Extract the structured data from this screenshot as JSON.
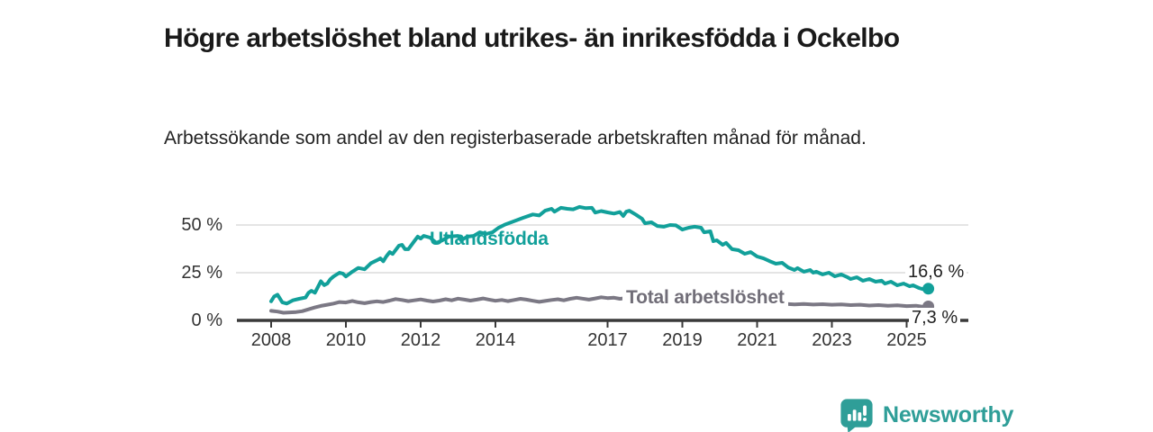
{
  "header": {
    "title": "Högre arbetslöshet bland utrikes- än inrikesfödda i Ockelbo",
    "subtitle": "Arbetssökande som andel av den registerbaserade arbetskraften månad för månad."
  },
  "footer": {
    "brand": "Newsworthy",
    "logo_icon": "bar-chart-speech-bubble-icon"
  },
  "colors": {
    "accent_teal": "#12a09a",
    "series_gray": "#7b7884",
    "brand_teal": "#2f9e98",
    "axis": "#3a3a3a",
    "gridline": "#dcdcdc",
    "title_text": "#1a1a1a"
  },
  "chart_data": {
    "type": "line",
    "title": "Högre arbetslöshet bland utrikes- än inrikesfödda i Ockelbo",
    "subtitle": "Arbetssökande som andel av den registerbaserade arbetskraften månad för månad.",
    "xlabel": "",
    "ylabel": "",
    "grid": "horizontal",
    "legend_position": "inline-labels",
    "xlim": [
      2007.1,
      2026.4
    ],
    "ylim": [
      0,
      65
    ],
    "x_ticks": [
      2008,
      2010,
      2012,
      2014,
      2017,
      2019,
      2021,
      2023,
      2025
    ],
    "y_ticks": [
      {
        "value": 0,
        "label": "0 %"
      },
      {
        "value": 25,
        "label": "25 %"
      },
      {
        "value": 50,
        "label": "50 %"
      }
    ],
    "series": [
      {
        "name": "Utlandsfödda",
        "color": "#12a09a",
        "end_label": "16,6 %",
        "end_value": 16.6,
        "points": [
          [
            2008.0,
            10.0
          ],
          [
            2008.08,
            12.5
          ],
          [
            2008.17,
            13.5
          ],
          [
            2008.3,
            9.5
          ],
          [
            2008.42,
            8.8
          ],
          [
            2008.58,
            10.5
          ],
          [
            2008.75,
            11.3
          ],
          [
            2008.92,
            12.0
          ],
          [
            2009.0,
            14.5
          ],
          [
            2009.08,
            15.5
          ],
          [
            2009.17,
            14.5
          ],
          [
            2009.25,
            17.5
          ],
          [
            2009.33,
            20.5
          ],
          [
            2009.42,
            18.5
          ],
          [
            2009.5,
            19.3
          ],
          [
            2009.58,
            21.5
          ],
          [
            2009.67,
            23.0
          ],
          [
            2009.83,
            25.0
          ],
          [
            2009.92,
            24.5
          ],
          [
            2010.0,
            23.0
          ],
          [
            2010.17,
            25.5
          ],
          [
            2010.33,
            27.5
          ],
          [
            2010.5,
            26.8
          ],
          [
            2010.67,
            30.0
          ],
          [
            2010.83,
            31.5
          ],
          [
            2010.92,
            32.5
          ],
          [
            2011.0,
            31.0
          ],
          [
            2011.08,
            33.5
          ],
          [
            2011.17,
            35.8
          ],
          [
            2011.25,
            34.8
          ],
          [
            2011.42,
            39.2
          ],
          [
            2011.5,
            39.6
          ],
          [
            2011.58,
            37.3
          ],
          [
            2011.67,
            37.3
          ],
          [
            2011.83,
            41.5
          ],
          [
            2011.92,
            43.9
          ],
          [
            2012.0,
            42.9
          ],
          [
            2012.08,
            44.3
          ],
          [
            2012.25,
            43.4
          ],
          [
            2012.42,
            40.6
          ],
          [
            2012.58,
            42.0
          ],
          [
            2012.75,
            43.9
          ],
          [
            2013.0,
            44.3
          ],
          [
            2013.08,
            42.0
          ],
          [
            2013.25,
            43.9
          ],
          [
            2013.42,
            44.3
          ],
          [
            2013.58,
            46.2
          ],
          [
            2013.75,
            45.3
          ],
          [
            2013.92,
            46.2
          ],
          [
            2014.08,
            48.5
          ],
          [
            2014.25,
            50.2
          ],
          [
            2014.5,
            52.0
          ],
          [
            2014.75,
            53.8
          ],
          [
            2015.0,
            55.5
          ],
          [
            2015.17,
            55.0
          ],
          [
            2015.33,
            57.5
          ],
          [
            2015.5,
            58.5
          ],
          [
            2015.58,
            57.0
          ],
          [
            2015.75,
            59.0
          ],
          [
            2015.92,
            58.5
          ],
          [
            2016.08,
            58.2
          ],
          [
            2016.25,
            59.5
          ],
          [
            2016.42,
            58.8
          ],
          [
            2016.58,
            59.0
          ],
          [
            2016.67,
            56.5
          ],
          [
            2016.83,
            57.3
          ],
          [
            2017.0,
            56.6
          ],
          [
            2017.17,
            56.0
          ],
          [
            2017.33,
            56.8
          ],
          [
            2017.42,
            54.7
          ],
          [
            2017.5,
            57.0
          ],
          [
            2017.58,
            57.5
          ],
          [
            2017.75,
            55.5
          ],
          [
            2017.92,
            53.3
          ],
          [
            2018.0,
            50.9
          ],
          [
            2018.17,
            51.4
          ],
          [
            2018.33,
            49.5
          ],
          [
            2018.5,
            49.1
          ],
          [
            2018.67,
            50.0
          ],
          [
            2018.83,
            49.8
          ],
          [
            2019.0,
            47.6
          ],
          [
            2019.17,
            48.6
          ],
          [
            2019.33,
            49.1
          ],
          [
            2019.5,
            48.6
          ],
          [
            2019.58,
            46.2
          ],
          [
            2019.75,
            46.7
          ],
          [
            2019.83,
            41.5
          ],
          [
            2019.92,
            42.0
          ],
          [
            2020.08,
            39.6
          ],
          [
            2020.17,
            40.6
          ],
          [
            2020.33,
            37.3
          ],
          [
            2020.5,
            36.8
          ],
          [
            2020.67,
            34.9
          ],
          [
            2020.83,
            35.8
          ],
          [
            2021.0,
            33.5
          ],
          [
            2021.17,
            32.5
          ],
          [
            2021.33,
            31.1
          ],
          [
            2021.5,
            29.7
          ],
          [
            2021.67,
            30.2
          ],
          [
            2021.83,
            27.8
          ],
          [
            2022.0,
            26.4
          ],
          [
            2022.08,
            27.4
          ],
          [
            2022.25,
            25.5
          ],
          [
            2022.42,
            26.4
          ],
          [
            2022.5,
            25.0
          ],
          [
            2022.58,
            25.5
          ],
          [
            2022.75,
            24.1
          ],
          [
            2022.92,
            25.0
          ],
          [
            2023.08,
            23.1
          ],
          [
            2023.25,
            24.1
          ],
          [
            2023.42,
            22.6
          ],
          [
            2023.5,
            21.7
          ],
          [
            2023.67,
            22.6
          ],
          [
            2023.83,
            20.8
          ],
          [
            2024.0,
            21.7
          ],
          [
            2024.17,
            20.3
          ],
          [
            2024.33,
            20.8
          ],
          [
            2024.42,
            19.3
          ],
          [
            2024.58,
            20.3
          ],
          [
            2024.75,
            18.4
          ],
          [
            2024.92,
            19.3
          ],
          [
            2025.08,
            17.9
          ],
          [
            2025.17,
            18.4
          ],
          [
            2025.33,
            17.0
          ],
          [
            2025.5,
            16.0
          ],
          [
            2025.58,
            16.6
          ]
        ]
      },
      {
        "name": "Total arbetslöshet",
        "color": "#7b7884",
        "end_label": "7,3 %",
        "end_value": 7.3,
        "points": [
          [
            2008.0,
            5.0
          ],
          [
            2008.17,
            4.6
          ],
          [
            2008.33,
            4.0
          ],
          [
            2008.5,
            4.2
          ],
          [
            2008.67,
            4.4
          ],
          [
            2008.83,
            4.8
          ],
          [
            2009.0,
            5.8
          ],
          [
            2009.17,
            6.8
          ],
          [
            2009.33,
            7.6
          ],
          [
            2009.5,
            8.2
          ],
          [
            2009.67,
            8.8
          ],
          [
            2009.83,
            9.6
          ],
          [
            2010.0,
            9.4
          ],
          [
            2010.17,
            10.2
          ],
          [
            2010.33,
            9.5
          ],
          [
            2010.5,
            9.0
          ],
          [
            2010.67,
            9.6
          ],
          [
            2010.83,
            10.0
          ],
          [
            2011.0,
            9.6
          ],
          [
            2011.17,
            10.4
          ],
          [
            2011.33,
            11.2
          ],
          [
            2011.5,
            10.7
          ],
          [
            2011.67,
            10.1
          ],
          [
            2011.83,
            10.5
          ],
          [
            2012.0,
            11.0
          ],
          [
            2012.17,
            10.4
          ],
          [
            2012.33,
            9.9
          ],
          [
            2012.5,
            10.4
          ],
          [
            2012.67,
            11.1
          ],
          [
            2012.83,
            10.5
          ],
          [
            2013.0,
            11.4
          ],
          [
            2013.17,
            10.9
          ],
          [
            2013.33,
            10.4
          ],
          [
            2013.5,
            10.9
          ],
          [
            2013.67,
            11.5
          ],
          [
            2013.83,
            10.9
          ],
          [
            2014.0,
            10.3
          ],
          [
            2014.17,
            10.7
          ],
          [
            2014.33,
            10.1
          ],
          [
            2014.5,
            10.7
          ],
          [
            2014.67,
            11.3
          ],
          [
            2014.83,
            10.9
          ],
          [
            2015.0,
            10.3
          ],
          [
            2015.17,
            9.7
          ],
          [
            2015.33,
            10.2
          ],
          [
            2015.5,
            10.7
          ],
          [
            2015.67,
            11.1
          ],
          [
            2015.83,
            10.5
          ],
          [
            2016.0,
            11.3
          ],
          [
            2016.17,
            11.9
          ],
          [
            2016.33,
            11.4
          ],
          [
            2016.5,
            10.9
          ],
          [
            2016.67,
            11.5
          ],
          [
            2016.83,
            12.1
          ],
          [
            2017.0,
            11.7
          ],
          [
            2017.17,
            11.9
          ],
          [
            2017.33,
            11.3
          ],
          [
            2017.5,
            11.7
          ],
          [
            2017.67,
            11.1
          ],
          [
            2017.83,
            10.7
          ],
          [
            2018.0,
            10.3
          ],
          [
            2018.25,
            10.0
          ],
          [
            2018.5,
            9.7
          ],
          [
            2018.75,
            9.9
          ],
          [
            2019.0,
            9.5
          ],
          [
            2019.25,
            9.3
          ],
          [
            2019.5,
            9.6
          ],
          [
            2019.75,
            9.2
          ],
          [
            2020.0,
            9.4
          ],
          [
            2020.25,
            9.8
          ],
          [
            2020.5,
            9.6
          ],
          [
            2020.75,
            9.2
          ],
          [
            2021.0,
            9.0
          ],
          [
            2021.25,
            8.8
          ],
          [
            2021.5,
            8.5
          ],
          [
            2021.75,
            8.7
          ],
          [
            2022.0,
            8.4
          ],
          [
            2022.25,
            8.6
          ],
          [
            2022.5,
            8.3
          ],
          [
            2022.75,
            8.5
          ],
          [
            2023.0,
            8.2
          ],
          [
            2023.25,
            8.4
          ],
          [
            2023.5,
            8.0
          ],
          [
            2023.75,
            8.2
          ],
          [
            2024.0,
            7.8
          ],
          [
            2024.25,
            8.0
          ],
          [
            2024.5,
            7.7
          ],
          [
            2024.75,
            7.9
          ],
          [
            2025.0,
            7.5
          ],
          [
            2025.25,
            7.7
          ],
          [
            2025.42,
            7.2
          ],
          [
            2025.58,
            7.3
          ]
        ]
      }
    ]
  }
}
